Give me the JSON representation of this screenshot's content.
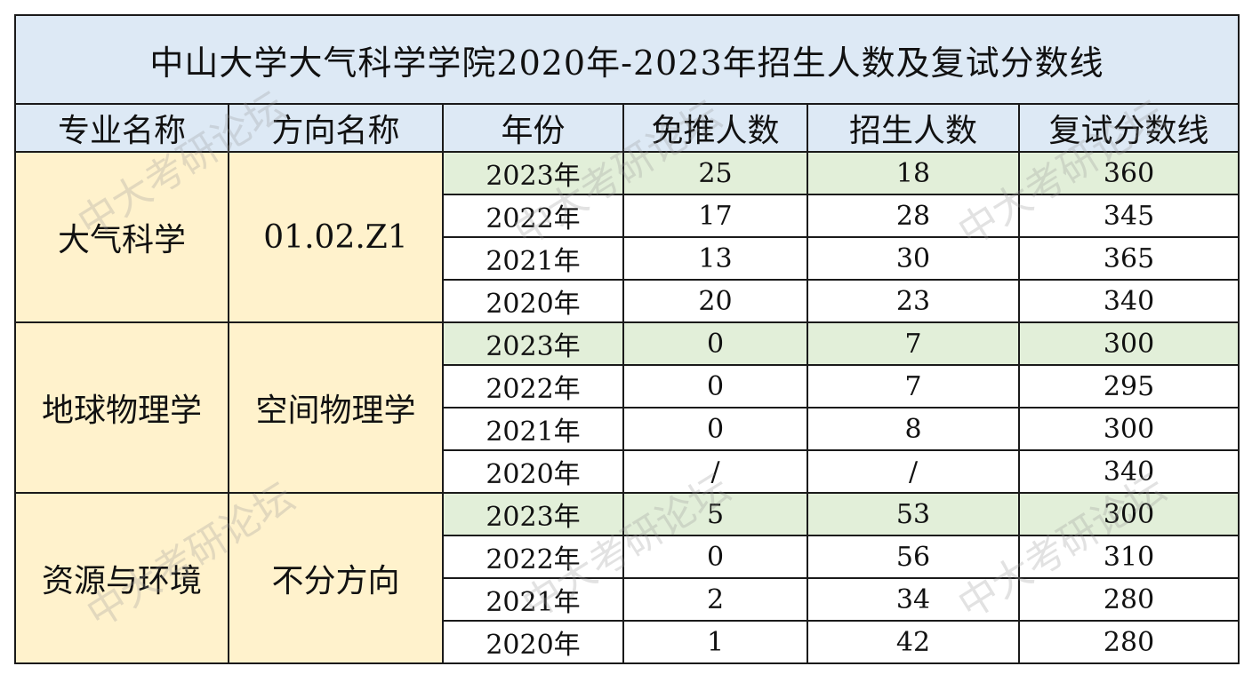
{
  "title": "中山大学大气科学学院2020年-2023年招生人数及复试分数线",
  "headers": [
    "专业名称",
    "方向名称",
    "年份",
    "免推人数",
    "招生人数",
    "复试分数线"
  ],
  "groups": [
    {
      "major": "大气科学",
      "direction": "01.02.Z1",
      "rows": [
        {
          "year": "2023年",
          "exempt": "25",
          "enroll": "18",
          "score": "360"
        },
        {
          "year": "2022年",
          "exempt": "17",
          "enroll": "28",
          "score": "345"
        },
        {
          "year": "2021年",
          "exempt": "13",
          "enroll": "30",
          "score": "365"
        },
        {
          "year": "2020年",
          "exempt": "20",
          "enroll": "23",
          "score": "340"
        }
      ]
    },
    {
      "major": "地球物理学",
      "direction": "空间物理学",
      "rows": [
        {
          "year": "2023年",
          "exempt": "0",
          "enroll": "7",
          "score": "300"
        },
        {
          "year": "2022年",
          "exempt": "0",
          "enroll": "7",
          "score": "295"
        },
        {
          "year": "2021年",
          "exempt": "0",
          "enroll": "8",
          "score": "300"
        },
        {
          "year": "2020年",
          "exempt": "/",
          "enroll": "/",
          "score": "340"
        }
      ]
    },
    {
      "major": "资源与环境",
      "direction": "不分方向",
      "rows": [
        {
          "year": "2023年",
          "exempt": "5",
          "enroll": "53",
          "score": "300"
        },
        {
          "year": "2022年",
          "exempt": "0",
          "enroll": "56",
          "score": "310"
        },
        {
          "year": "2021年",
          "exempt": "2",
          "enroll": "34",
          "score": "280"
        },
        {
          "year": "2020年",
          "exempt": "1",
          "enroll": "42",
          "score": "280"
        }
      ]
    }
  ],
  "watermark": "中大考研论坛",
  "colors": {
    "header_bg": "#dde9f5",
    "group_bg": "#fff2cc",
    "highlight_bg": "#e2efd9"
  }
}
